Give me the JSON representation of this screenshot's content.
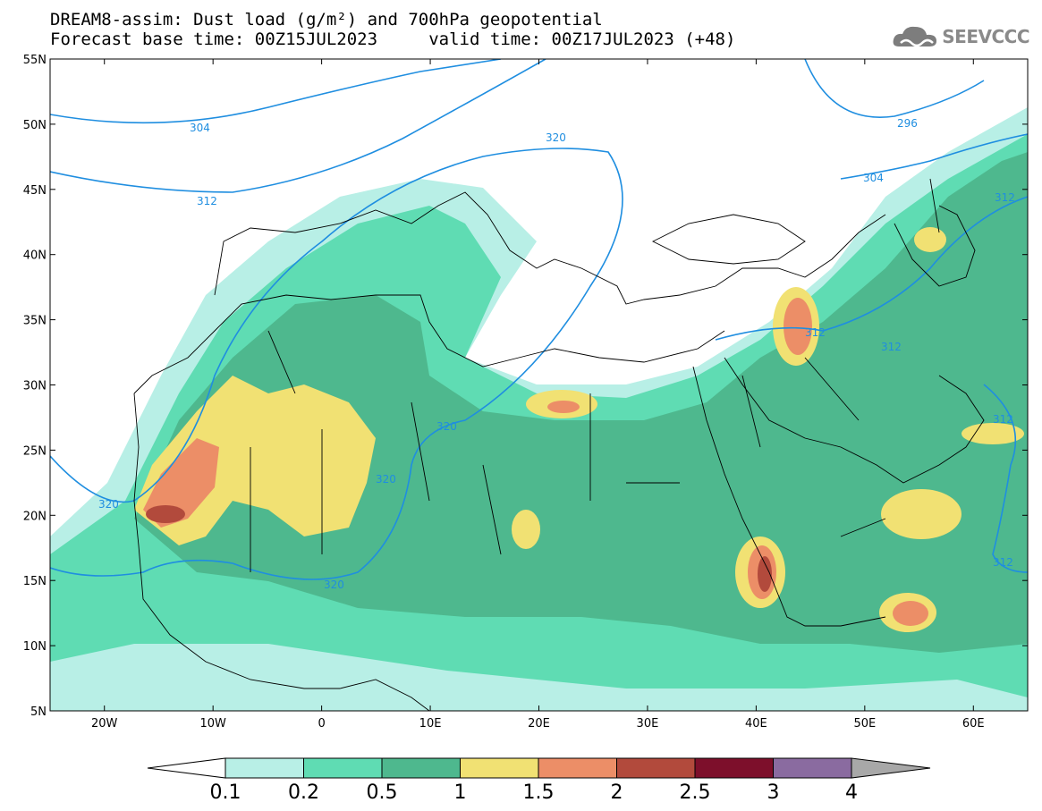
{
  "header": {
    "line1": "DREAM8-assim: Dust load (g/m²) and 700hPa geopotential",
    "line2": "Forecast base time: 00Z15JUL2023     valid time: 00Z17JUL2023 (+48)",
    "logo_text": "SEEVCCC"
  },
  "axes": {
    "lat_labels": [
      "55N",
      "50N",
      "45N",
      "40N",
      "35N",
      "30N",
      "25N",
      "20N",
      "15N",
      "10N",
      "5N"
    ],
    "lon_labels": [
      "20W",
      "10W",
      "0",
      "10E",
      "20E",
      "30E",
      "40E",
      "50E",
      "60E"
    ]
  },
  "contour_labels": [
    "304",
    "312",
    "320",
    "320",
    "320",
    "320",
    "320",
    "296",
    "304",
    "312",
    "312",
    "312",
    "312",
    "312"
  ],
  "colorbar": {
    "labels": [
      "0.1",
      "0.2",
      "0.5",
      "1",
      "1.5",
      "2",
      "2.5",
      "3",
      "4"
    ],
    "colors": [
      "#b8efe6",
      "#5fdcb3",
      "#4eb88e",
      "#f1e173",
      "#ec8e67",
      "#b24a3c",
      "#7d0f2b",
      "#8a6ba0"
    ],
    "low_color": "#ffffff",
    "high_color": "#a8a8a8"
  },
  "chart_data": {
    "type": "heatmap",
    "title": "DREAM8-assim: Dust load (g/m²) and 700hPa geopotential",
    "xlim": [
      -25,
      65
    ],
    "ylim": [
      5,
      55
    ],
    "levels": [
      0.1,
      0.2,
      0.5,
      1,
      1.5,
      2,
      2.5,
      3,
      4
    ],
    "hotspots": [
      {
        "lon": -15,
        "lat": 21,
        "value": 2.5
      },
      {
        "lon": -12,
        "lat": 24,
        "value": 2.0
      },
      {
        "lon": 0,
        "lat": 25,
        "value": 1.5
      },
      {
        "lon": 22,
        "lat": 27.5,
        "value": 1.5
      },
      {
        "lon": 44,
        "lat": 34,
        "value": 2.0
      },
      {
        "lon": 41,
        "lat": 16,
        "value": 2.5
      },
      {
        "lon": 55,
        "lat": 12,
        "value": 2.0
      },
      {
        "lon": 56,
        "lat": 20,
        "value": 1.5
      }
    ]
  }
}
